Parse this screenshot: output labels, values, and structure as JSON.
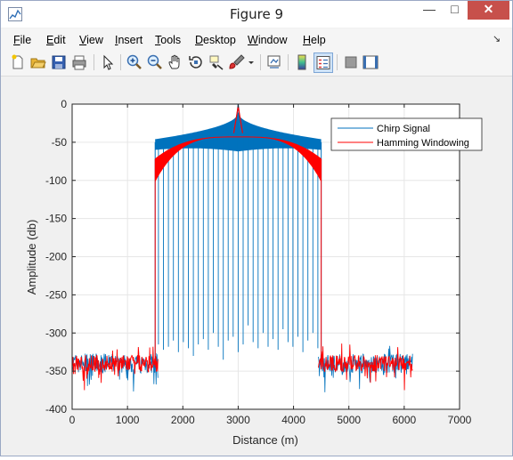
{
  "window": {
    "title": "Figure 9",
    "minimize_glyph": "—",
    "maximize_glyph": "□",
    "close_glyph": "✕"
  },
  "menu": {
    "items": [
      {
        "label": "File",
        "underline": "F",
        "rest": "ile"
      },
      {
        "label": "Edit",
        "underline": "E",
        "rest": "dit"
      },
      {
        "label": "View",
        "underline": "V",
        "rest": "iew"
      },
      {
        "label": "Insert",
        "underline": "I",
        "rest": "nsert"
      },
      {
        "label": "Tools",
        "underline": "T",
        "rest": "ools"
      },
      {
        "label": "Desktop",
        "underline": "D",
        "rest": "esktop"
      },
      {
        "label": "Window",
        "underline": "W",
        "rest": "indow"
      },
      {
        "label": "Help",
        "underline": "H",
        "rest": "elp"
      }
    ],
    "dock_glyph": "↘"
  },
  "toolbar": {
    "buttons": [
      "new-figure-icon",
      "open-file-icon",
      "save-icon",
      "print-icon",
      "edit-plot-icon",
      "zoom-in-icon",
      "zoom-out-icon",
      "pan-icon",
      "rotate-3d-icon",
      "data-cursor-icon",
      "brush-icon",
      "brush-dropdown-icon",
      "link-plot-icon",
      "insert-colorbar-icon",
      "insert-legend-icon",
      "hide-plot-tools-icon",
      "show-plot-tools-icon"
    ],
    "active": "insert-legend-icon"
  },
  "colors": {
    "chirp": "#0072BD",
    "hamming": "#ff0000",
    "grid": "#e6e6e6",
    "axes": "#262626",
    "close": "#c7504b"
  },
  "chart_data": {
    "type": "line",
    "xlabel": "Distance (m)",
    "ylabel": "Amplitude (db)",
    "xlim": [
      0,
      7000
    ],
    "ylim": [
      -400,
      0
    ],
    "xticks": [
      0,
      1000,
      2000,
      3000,
      4000,
      5000,
      6000,
      7000
    ],
    "yticks": [
      0,
      -50,
      -100,
      -150,
      -200,
      -250,
      -300,
      -350,
      -400
    ],
    "grid": true,
    "legend_position": "top-right",
    "series": [
      {
        "name": "Chirp Signal",
        "color": "#0072BD",
        "noise_floor_db": -340,
        "noise_regions_m": [
          [
            0,
            1550
          ],
          [
            4450,
            6150
          ]
        ],
        "band_m": [
          1500,
          4500
        ],
        "band_edge_db": -50,
        "peak": {
          "x": 3000,
          "y": 0
        },
        "null_depths_db": [
          -315,
          -322,
          -318,
          -310,
          -325,
          -312,
          -320,
          -330,
          -315,
          -308,
          -322,
          -300,
          -318,
          -335,
          -310,
          -305,
          -325,
          -315,
          -290,
          -312,
          -320,
          -300,
          -318,
          -308,
          -322,
          -295,
          -312,
          -318,
          -305,
          -325,
          -310,
          -300,
          -320
        ]
      },
      {
        "name": "Hamming Windowing",
        "color": "#ff0000",
        "noise_floor_db": -340,
        "noise_regions_m": [
          [
            0,
            1550
          ],
          [
            4450,
            6150
          ]
        ],
        "band_m": [
          1500,
          4500
        ],
        "edge_db": -72,
        "plateau_db": -43,
        "peak": {
          "x": 3000,
          "y": -3
        }
      }
    ]
  }
}
